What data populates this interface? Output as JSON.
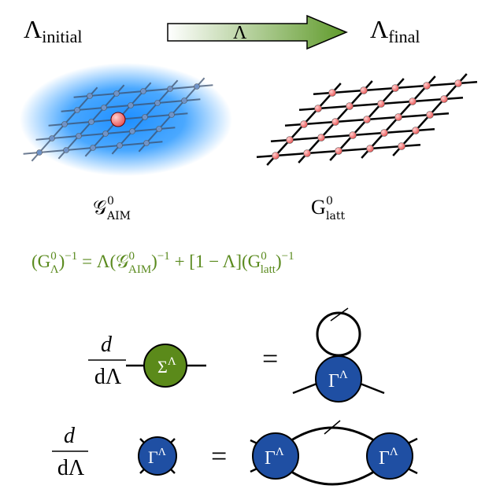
{
  "header": {
    "start": {
      "symbol": "Λ",
      "sub": "initial"
    },
    "arrow": "Λ",
    "end": {
      "symbol": "Λ",
      "sub": "final"
    }
  },
  "lattices": [
    {
      "symbol": "𝒢",
      "sup": "0",
      "sub": "AIM"
    },
    {
      "symbol": "G",
      "sup": "0",
      "sub": "latt"
    }
  ],
  "formula": [
    "(G",
    "0",
    "Λ",
    ")",
    "−1",
    " = Λ(𝒢",
    "0",
    "AIM",
    ")",
    "−1",
    " + [1 − Λ](G",
    "0",
    "latt",
    ")",
    "−1"
  ],
  "equations": [
    {
      "numerator": "d",
      "denominator": "dΛ",
      "lhs": {
        "symbol": "Σ",
        "sup": "Λ"
      },
      "equals": "=",
      "rhs": [
        {
          "symbol": "Γ",
          "sup": "Λ"
        }
      ]
    },
    {
      "numerator": "d",
      "denominator": "dΛ",
      "lhs": {
        "symbol": "Γ",
        "sup": "Λ"
      },
      "equals": "=",
      "rhs": [
        {
          "symbol": "Γ",
          "sup": "Λ"
        },
        {
          "symbol": "Γ",
          "sup": "Λ"
        }
      ]
    }
  ]
}
